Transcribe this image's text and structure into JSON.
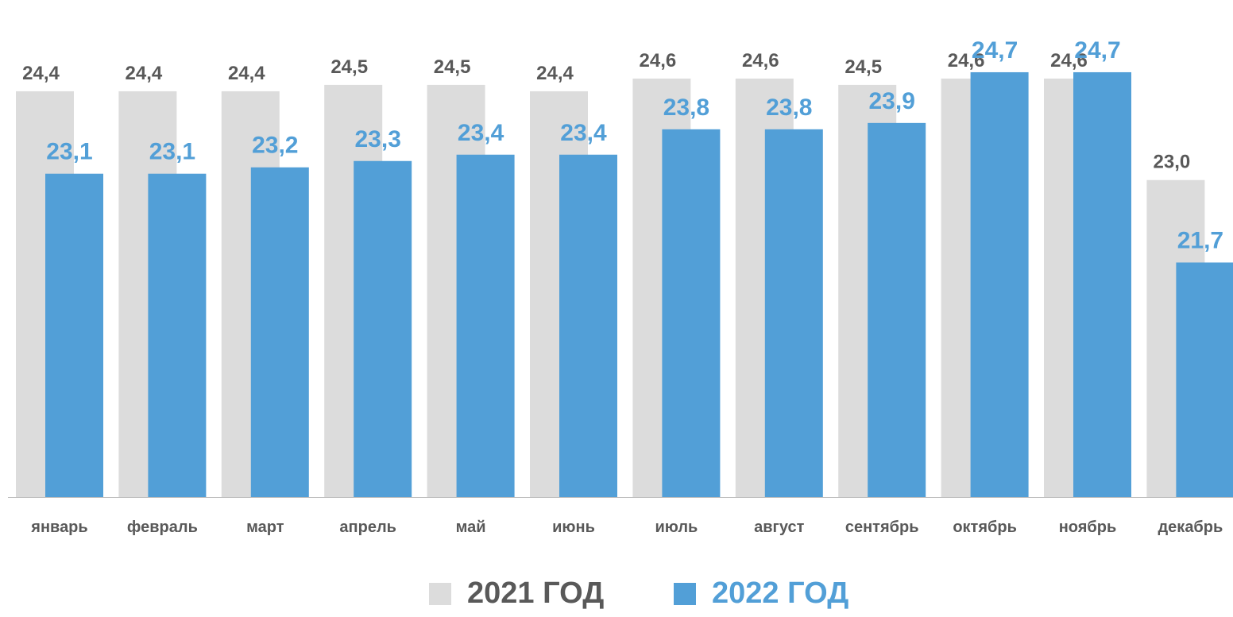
{
  "chart_data": {
    "type": "bar",
    "categories": [
      "январь",
      "февраль",
      "март",
      "апрель",
      "май",
      "июнь",
      "июль",
      "август",
      "сентябрь",
      "октябрь",
      "ноябрь",
      "декабрь"
    ],
    "series": [
      {
        "name": "2021 ГОД",
        "values": [
          24.4,
          24.4,
          24.4,
          24.5,
          24.5,
          24.4,
          24.6,
          24.6,
          24.5,
          24.6,
          24.6,
          23.0
        ],
        "labels": [
          "24,4",
          "24,4",
          "24,4",
          "24,5",
          "24,5",
          "24,4",
          "24,6",
          "24,6",
          "24,5",
          "24,6",
          "24,6",
          "23,0"
        ]
      },
      {
        "name": "2022 ГОД",
        "values": [
          23.1,
          23.1,
          23.2,
          23.3,
          23.4,
          23.4,
          23.8,
          23.8,
          23.9,
          24.7,
          24.7,
          21.7
        ],
        "labels": [
          "23,1",
          "23,1",
          "23,2",
          "23,3",
          "23,4",
          "23,4",
          "23,8",
          "23,8",
          "23,9",
          "24,7",
          "24,7",
          "21,7"
        ]
      }
    ],
    "ylim": [
      18,
      25
    ],
    "grid": false,
    "legend_position": "bottom",
    "colors": {
      "2021": "#dcdcdc",
      "2022": "#529fd7",
      "label_2021": "#595959",
      "label_2022": "#529fd7",
      "axis": "#bfbfbf"
    }
  }
}
